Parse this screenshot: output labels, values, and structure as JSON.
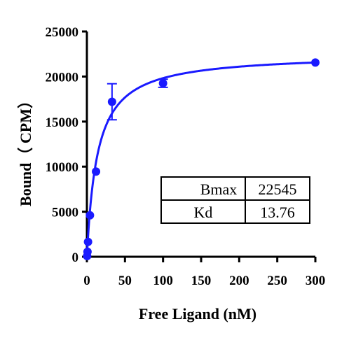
{
  "chart_data": {
    "type": "scatter",
    "xlabel": "Free Ligand (nM)",
    "ylabel": "Bound（ CPM）",
    "xlim": [
      0,
      300
    ],
    "ylim": [
      0,
      25000
    ],
    "x_ticks": [
      0,
      50,
      100,
      150,
      200,
      250,
      300
    ],
    "y_ticks": [
      0,
      5000,
      10000,
      15000,
      20000,
      25000
    ],
    "grid": false,
    "series": [
      {
        "color": "#1a1aff",
        "points": [
          {
            "x": 0.3,
            "y": 80
          },
          {
            "x": 0.8,
            "y": 550
          },
          {
            "x": 1.5,
            "y": 1650
          },
          {
            "x": 4,
            "y": 4600
          },
          {
            "x": 12,
            "y": 9450
          },
          {
            "x": 33,
            "y": 17200,
            "err": 2000
          },
          {
            "x": 100,
            "y": 19250,
            "err": 450
          },
          {
            "x": 300,
            "y": 21550
          }
        ],
        "fit": {
          "model": "one-site specific binding",
          "Bmax": 22545,
          "Kd": 13.76
        }
      }
    ],
    "table": [
      {
        "param": "Bmax",
        "value": "22545"
      },
      {
        "param": "Kd",
        "value": "13.76"
      }
    ]
  }
}
